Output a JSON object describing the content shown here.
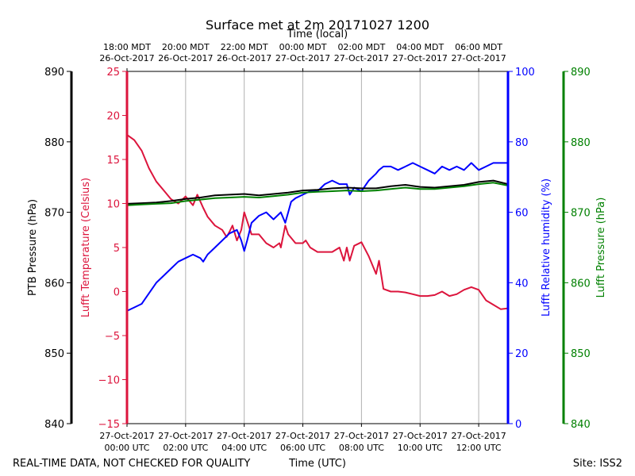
{
  "chart_data": {
    "type": "line",
    "title": "Surface met at 2m 20171027 1200",
    "top_xlabel": "Time (local)",
    "xlabel": "Time (UTC)",
    "footer_left": "REAL-TIME DATA, NOT CHECKED FOR QUALITY",
    "footer_right": "Site: ISS2",
    "x_range_hours": [
      0,
      13
    ],
    "top_ticks": [
      {
        "h": 0,
        "l1": "18:00 MDT",
        "l2": "26-Oct-2017"
      },
      {
        "h": 2,
        "l1": "20:00 MDT",
        "l2": "26-Oct-2017"
      },
      {
        "h": 4,
        "l1": "22:00 MDT",
        "l2": "26-Oct-2017"
      },
      {
        "h": 6,
        "l1": "00:00 MDT",
        "l2": "27-Oct-2017"
      },
      {
        "h": 8,
        "l1": "02:00 MDT",
        "l2": "27-Oct-2017"
      },
      {
        "h": 10,
        "l1": "04:00 MDT",
        "l2": "27-Oct-2017"
      },
      {
        "h": 12,
        "l1": "06:00 MDT",
        "l2": "27-Oct-2017"
      }
    ],
    "bottom_ticks": [
      {
        "h": 0,
        "l1": "27-Oct-2017",
        "l2": "00:00 UTC"
      },
      {
        "h": 2,
        "l1": "27-Oct-2017",
        "l2": "02:00 UTC"
      },
      {
        "h": 4,
        "l1": "27-Oct-2017",
        "l2": "04:00 UTC"
      },
      {
        "h": 6,
        "l1": "27-Oct-2017",
        "l2": "06:00 UTC"
      },
      {
        "h": 8,
        "l1": "27-Oct-2017",
        "l2": "08:00 UTC"
      },
      {
        "h": 10,
        "l1": "27-Oct-2017",
        "l2": "10:00 UTC"
      },
      {
        "h": 12,
        "l1": "27-Oct-2017",
        "l2": "12:00 UTC"
      }
    ],
    "axes": {
      "ptb_pressure": {
        "label": "PTB Pressure (hPa)",
        "range": [
          840,
          890
        ],
        "ticks": [
          840,
          850,
          860,
          870,
          880,
          890
        ],
        "color": "#000000"
      },
      "temperature": {
        "label": "Lufft Temperature (Celsius)",
        "range": [
          -15,
          25
        ],
        "ticks": [
          -15,
          -10,
          -5,
          0,
          5,
          10,
          15,
          20,
          25
        ],
        "color": "#dc143c"
      },
      "humidity": {
        "label": "Lufft Relative humidity (%)",
        "range": [
          0,
          100
        ],
        "ticks": [
          0,
          20,
          40,
          60,
          80,
          100
        ],
        "color": "#0000ff"
      },
      "lufft_pressure": {
        "label": "Lufft Pressure (hPa)",
        "range": [
          840,
          890
        ],
        "ticks": [
          840,
          850,
          860,
          870,
          880,
          890
        ],
        "color": "#008000"
      }
    },
    "series": [
      {
        "key": "temperature",
        "color": "#dc143c",
        "x": [
          0,
          0.25,
          0.5,
          0.75,
          1.0,
          1.25,
          1.5,
          1.75,
          2.0,
          2.25,
          2.4,
          2.6,
          2.75,
          3.0,
          3.25,
          3.4,
          3.5,
          3.6,
          3.75,
          3.9,
          4.0,
          4.1,
          4.25,
          4.5,
          4.75,
          5.0,
          5.2,
          5.25,
          5.4,
          5.5,
          5.75,
          6.0,
          6.1,
          6.25,
          6.5,
          6.75,
          7.0,
          7.25,
          7.4,
          7.5,
          7.6,
          7.75,
          8.0,
          8.25,
          8.5,
          8.6,
          8.75,
          9.0,
          9.25,
          9.5,
          9.75,
          10.0,
          10.25,
          10.5,
          10.75,
          11.0,
          11.25,
          11.5,
          11.75,
          12.0,
          12.25,
          12.5,
          12.75,
          13.0
        ],
        "values": [
          17.8,
          17.2,
          16.0,
          14.0,
          12.5,
          11.5,
          10.5,
          10.0,
          10.8,
          9.8,
          11.0,
          9.5,
          8.5,
          7.5,
          7.0,
          6.2,
          6.8,
          7.5,
          5.8,
          7.0,
          9.0,
          8.0,
          6.5,
          6.5,
          5.5,
          5.0,
          5.5,
          5.0,
          7.5,
          6.5,
          5.5,
          5.5,
          5.8,
          5.0,
          4.5,
          4.5,
          4.5,
          5.0,
          3.5,
          5.0,
          3.5,
          5.2,
          5.6,
          4.0,
          2.0,
          3.5,
          0.3,
          0.0,
          0.0,
          -0.1,
          -0.3,
          -0.5,
          -0.5,
          -0.4,
          0.0,
          -0.5,
          -0.3,
          0.2,
          0.5,
          0.2,
          -1.0,
          -1.5,
          -2.0,
          -1.9
        ]
      },
      {
        "key": "humidity",
        "color": "#0000ff",
        "x": [
          0,
          0.25,
          0.5,
          0.75,
          1.0,
          1.25,
          1.5,
          1.75,
          2.0,
          2.25,
          2.5,
          2.6,
          2.75,
          3.0,
          3.25,
          3.5,
          3.75,
          3.9,
          4.0,
          4.1,
          4.25,
          4.5,
          4.75,
          5.0,
          5.25,
          5.4,
          5.5,
          5.6,
          5.75,
          6.0,
          6.25,
          6.5,
          6.75,
          7.0,
          7.25,
          7.5,
          7.6,
          7.75,
          8.0,
          8.25,
          8.5,
          8.6,
          8.75,
          9.0,
          9.25,
          9.5,
          9.75,
          10.0,
          10.25,
          10.5,
          10.75,
          11.0,
          11.25,
          11.5,
          11.75,
          12.0,
          12.25,
          12.5,
          12.75,
          13.0
        ],
        "values": [
          32,
          33,
          34,
          37,
          40,
          42,
          44,
          46,
          47,
          48,
          47,
          46,
          48,
          50,
          52,
          54,
          55,
          52,
          49,
          52,
          57,
          59,
          60,
          58,
          60,
          57,
          60,
          63,
          64,
          65,
          66,
          66,
          68,
          69,
          68,
          68,
          65,
          67,
          66,
          69,
          71,
          72,
          73,
          73,
          72,
          73,
          74,
          73,
          72,
          71,
          73,
          72,
          73,
          72,
          74,
          72,
          73,
          74,
          74,
          74
        ]
      },
      {
        "key": "ptb_pressure",
        "color": "#000000",
        "x": [
          0,
          0.5,
          1.0,
          1.5,
          2.0,
          2.5,
          3.0,
          3.5,
          4.0,
          4.5,
          5.0,
          5.5,
          6.0,
          6.5,
          7.0,
          7.5,
          8.0,
          8.5,
          9.0,
          9.5,
          10.0,
          10.5,
          11.0,
          11.5,
          12.0,
          12.5,
          13.0
        ],
        "values": [
          871.2,
          871.3,
          871.4,
          871.6,
          871.9,
          872.1,
          872.4,
          872.5,
          872.6,
          872.4,
          872.6,
          872.8,
          873.1,
          873.2,
          873.4,
          873.5,
          873.4,
          873.4,
          873.7,
          873.9,
          873.6,
          873.5,
          873.7,
          873.9,
          874.3,
          874.5,
          874.0
        ]
      },
      {
        "key": "lufft_pressure",
        "color": "#008000",
        "x": [
          0,
          0.5,
          1.0,
          1.5,
          2.0,
          2.5,
          3.0,
          3.5,
          4.0,
          4.5,
          5.0,
          5.5,
          6.0,
          6.5,
          7.0,
          7.5,
          8.0,
          8.5,
          9.0,
          9.5,
          10.0,
          10.5,
          11.0,
          11.5,
          12.0,
          12.5,
          13.0
        ],
        "values": [
          871.0,
          871.1,
          871.2,
          871.3,
          871.6,
          871.8,
          872.0,
          872.1,
          872.2,
          872.1,
          872.3,
          872.5,
          872.8,
          872.9,
          873.0,
          873.1,
          873.0,
          873.1,
          873.3,
          873.5,
          873.3,
          873.3,
          873.5,
          873.7,
          874.0,
          874.2,
          873.8
        ]
      }
    ]
  }
}
